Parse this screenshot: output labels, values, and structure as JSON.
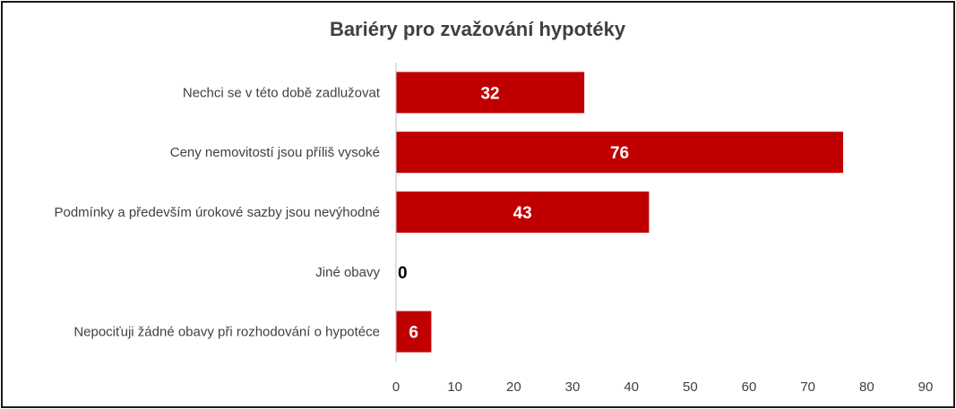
{
  "chart_data": {
    "type": "bar",
    "orientation": "horizontal",
    "title": "Bariéry pro zvažování hypotéky",
    "categories": [
      "Nechci se v této době zadlužovat",
      "Ceny nemovitostí jsou příliš vysoké",
      "Podmínky a především úrokové sazby jsou nevýhodné",
      "Jiné obavy",
      "Nepociťuji žádné obavy při rozhodování o hypotéce"
    ],
    "values": [
      32,
      76,
      43,
      0,
      6
    ],
    "data_labels": [
      "32",
      "76",
      "43",
      "0",
      "6"
    ],
    "xlim": [
      0,
      90
    ],
    "ticks": [
      0,
      10,
      20,
      30,
      40,
      50,
      60,
      70,
      80,
      90
    ],
    "tick_labels": [
      "0",
      "10",
      "20",
      "30",
      "40",
      "50",
      "60",
      "70",
      "80",
      "90"
    ],
    "bar_color": "#c00000",
    "label_color_inside": "#ffffff",
    "label_color_outside": "#000000",
    "text_color": "#404040",
    "axis_color": "#bfbfbf",
    "grid": false,
    "legend": "none"
  }
}
